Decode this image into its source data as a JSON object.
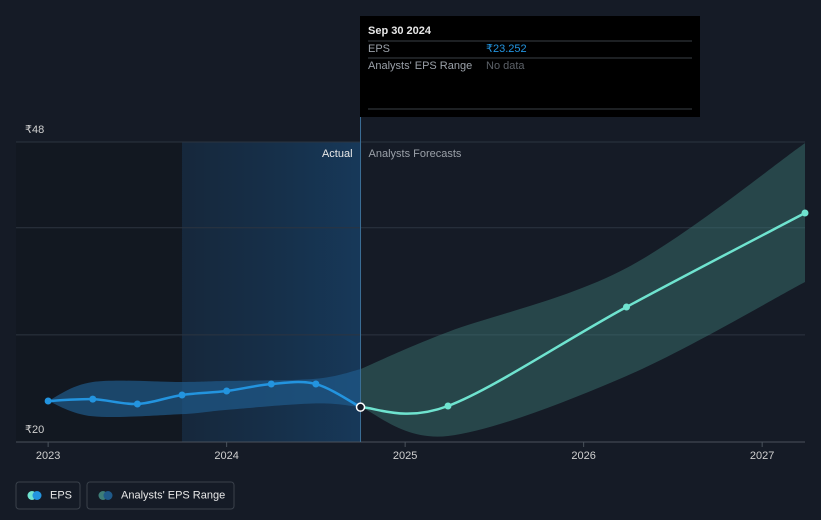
{
  "chart_data": {
    "type": "line",
    "xlim": [
      2022.82,
      2027.24
    ],
    "ylim": [
      20,
      48
    ],
    "xticks": [
      2023,
      2024,
      2025,
      2026,
      2027
    ],
    "yticks": [
      {
        "value": 20,
        "label": "₹20"
      },
      {
        "value": 30,
        "label": null
      },
      {
        "value": 40,
        "label": null
      },
      {
        "value": 48,
        "label": "₹48"
      }
    ],
    "grid": true,
    "divider_x": 2024.75,
    "highlight_start": 2023.75,
    "actual_label": "Actual",
    "forecast_label": "Analysts Forecasts",
    "series": [
      {
        "name": "EPS",
        "color": "#2394df",
        "forecast_color": "#6fe3cf",
        "x": [
          2023.0,
          2023.25,
          2023.5,
          2023.75,
          2024.0,
          2024.25,
          2024.5,
          2024.75,
          2025.24,
          2026.24,
          2027.24
        ],
        "values": [
          23.83,
          24.0,
          23.55,
          24.39,
          24.76,
          25.41,
          25.41,
          23.252,
          23.36,
          32.6,
          41.37
        ]
      },
      {
        "name": "Analysts' EPS Range",
        "color": "#1f5a8a",
        "forecast_color": "#3d7d78",
        "x": [
          2023.0,
          2023.25,
          2023.75,
          2024.0,
          2024.5,
          2024.75,
          2025.24,
          2026.24,
          2027.24
        ],
        "low": [
          23.83,
          22.4,
          22.6,
          23.0,
          23.6,
          23.252,
          20.56,
          26.16,
          34.93
        ],
        "high": [
          23.83,
          25.6,
          25.6,
          25.7,
          25.9,
          26.8,
          30.27,
          36.24,
          47.9
        ]
      }
    ],
    "tooltip": {
      "date": "Sep 30 2024",
      "rows": [
        {
          "label": "EPS",
          "value": "₹23.252"
        },
        {
          "label": "Analysts' EPS Range",
          "value": "No data"
        }
      ]
    }
  }
}
